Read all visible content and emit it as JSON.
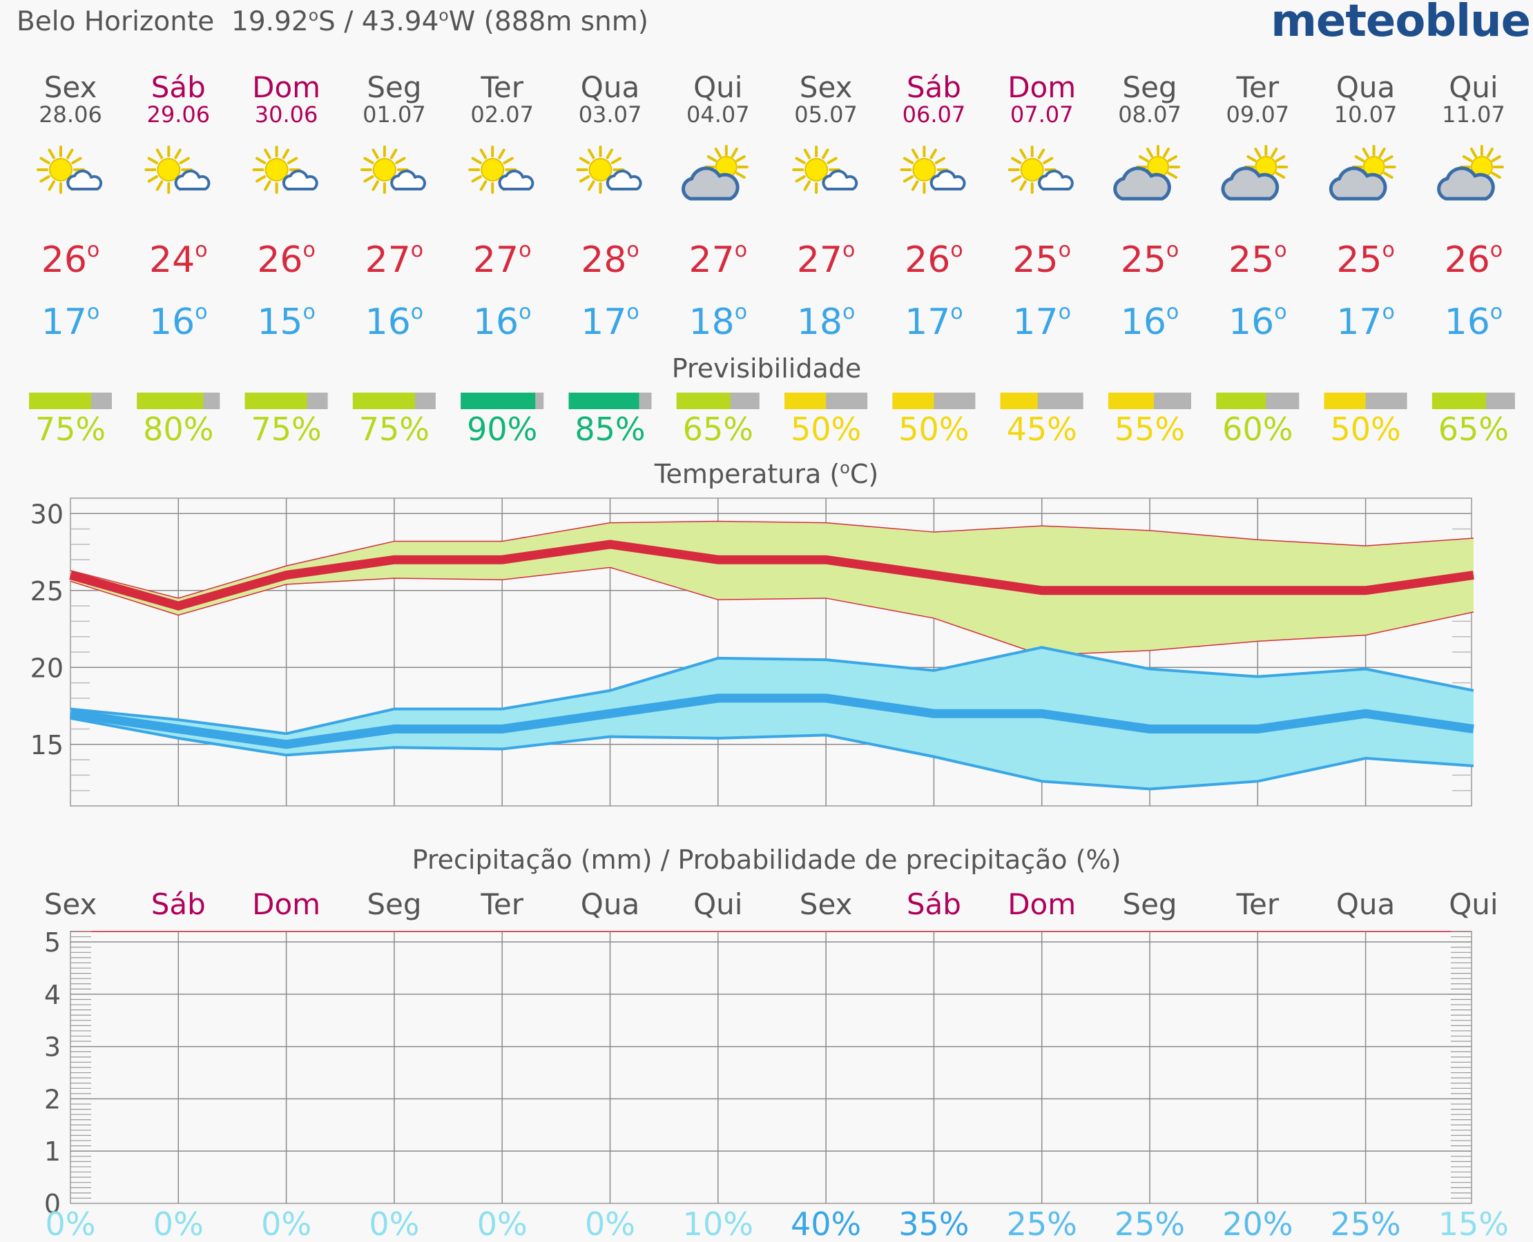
{
  "header": {
    "location": "Belo Horizonte",
    "lat": "19.92",
    "lat_dir": "S",
    "lon": "43.94",
    "lon_dir": "W",
    "elevation": "(888m snm)",
    "sep": "/",
    "brand": "meteoblue"
  },
  "colors": {
    "weekday": "#555555",
    "weekend": "#b0005a",
    "tmax": "#d62b3f",
    "tmin": "#3aa6e6",
    "max_band": "#d9ec9a",
    "min_band": "#9ee6f0",
    "pred_high": "#12b577",
    "pred_mid": "#b7d81e",
    "pred_low": "#f3d70f",
    "pred_rest": "#b4b4b4"
  },
  "days": [
    {
      "name": "Sex",
      "date": "28.06",
      "weekend": false,
      "icon": "sun-cloud-icon",
      "tmax": 26,
      "tmin": 17,
      "pred": 75,
      "precip_prob": "0%"
    },
    {
      "name": "Sáb",
      "date": "29.06",
      "weekend": true,
      "icon": "sun-cloud-icon",
      "tmax": 24,
      "tmin": 16,
      "pred": 80,
      "precip_prob": "0%"
    },
    {
      "name": "Dom",
      "date": "30.06",
      "weekend": true,
      "icon": "sun-cloud-icon",
      "tmax": 26,
      "tmin": 15,
      "pred": 75,
      "precip_prob": "0%"
    },
    {
      "name": "Seg",
      "date": "01.07",
      "weekend": false,
      "icon": "sun-cloud-icon",
      "tmax": 27,
      "tmin": 16,
      "pred": 75,
      "precip_prob": "0%"
    },
    {
      "name": "Ter",
      "date": "02.07",
      "weekend": false,
      "icon": "sun-cloud-icon",
      "tmax": 27,
      "tmin": 16,
      "pred": 90,
      "precip_prob": "0%"
    },
    {
      "name": "Qua",
      "date": "03.07",
      "weekend": false,
      "icon": "sun-cloud-icon",
      "tmax": 28,
      "tmin": 17,
      "pred": 85,
      "precip_prob": "0%"
    },
    {
      "name": "Qui",
      "date": "04.07",
      "weekend": false,
      "icon": "cloud-sun-icon",
      "tmax": 27,
      "tmin": 18,
      "pred": 65,
      "precip_prob": "10%"
    },
    {
      "name": "Sex",
      "date": "05.07",
      "weekend": false,
      "icon": "sun-cloud-icon",
      "tmax": 27,
      "tmin": 18,
      "pred": 50,
      "precip_prob": "40%"
    },
    {
      "name": "Sáb",
      "date": "06.07",
      "weekend": true,
      "icon": "sun-cloud-icon",
      "tmax": 26,
      "tmin": 17,
      "pred": 50,
      "precip_prob": "35%"
    },
    {
      "name": "Dom",
      "date": "07.07",
      "weekend": true,
      "icon": "sun-cloud-icon",
      "tmax": 25,
      "tmin": 17,
      "pred": 45,
      "precip_prob": "25%"
    },
    {
      "name": "Seg",
      "date": "08.07",
      "weekend": false,
      "icon": "cloud-sun-icon",
      "tmax": 25,
      "tmin": 16,
      "pred": 55,
      "precip_prob": "25%"
    },
    {
      "name": "Ter",
      "date": "09.07",
      "weekend": false,
      "icon": "cloud-sun-icon",
      "tmax": 25,
      "tmin": 16,
      "pred": 60,
      "precip_prob": "20%"
    },
    {
      "name": "Qua",
      "date": "10.07",
      "weekend": false,
      "icon": "cloud-sun-icon",
      "tmax": 25,
      "tmin": 17,
      "pred": 50,
      "precip_prob": "25%"
    },
    {
      "name": "Qui",
      "date": "11.07",
      "weekend": false,
      "icon": "cloud-sun-icon",
      "tmax": 26,
      "tmin": 16,
      "pred": 65,
      "precip_prob": "15%"
    }
  ],
  "predictability_title": "Previsibilidade",
  "chart_data": [
    {
      "type": "area",
      "title": "Temperatura (°C)",
      "unit": "°C",
      "ylim": [
        11,
        31
      ],
      "yticks": [
        15,
        20,
        25,
        30
      ],
      "x": [
        "Sex",
        "Sáb",
        "Dom",
        "Seg",
        "Ter",
        "Qua",
        "Qui",
        "Sex",
        "Sáb",
        "Dom",
        "Seg",
        "Ter",
        "Qua",
        "Qui"
      ],
      "grid": true,
      "series": [
        {
          "role": "max_upper",
          "values": [
            26.3,
            24.5,
            26.6,
            28.2,
            28.2,
            29.4,
            29.5,
            29.4,
            28.8,
            29.2,
            28.9,
            28.3,
            27.9,
            28.4
          ]
        },
        {
          "role": "max_lower",
          "values": [
            25.6,
            23.4,
            25.4,
            25.8,
            25.7,
            26.5,
            24.4,
            24.5,
            23.2,
            20.8,
            21.1,
            21.7,
            22.1,
            23.6
          ]
        },
        {
          "role": "max",
          "values": [
            26,
            24,
            26,
            27,
            27,
            28,
            27,
            27,
            26,
            25,
            25,
            25,
            25,
            26
          ]
        },
        {
          "role": "min_upper",
          "values": [
            17.3,
            16.6,
            15.7,
            17.3,
            17.3,
            18.5,
            20.6,
            20.5,
            19.8,
            21.3,
            19.9,
            19.4,
            19.9,
            18.5
          ]
        },
        {
          "role": "min_lower",
          "values": [
            16.7,
            15.4,
            14.3,
            14.8,
            14.7,
            15.5,
            15.4,
            15.6,
            14.2,
            12.6,
            12.1,
            12.6,
            14.1,
            13.6
          ]
        },
        {
          "role": "min",
          "values": [
            17,
            16,
            15,
            16,
            16,
            17,
            18,
            18,
            17,
            17,
            16,
            16,
            17,
            16
          ]
        }
      ]
    },
    {
      "type": "bar",
      "title": "Precipitação (mm) / Probabilidade de precipitação (%)",
      "unit": "mm",
      "ylim": [
        0,
        5.2
      ],
      "yticks": [
        0,
        1,
        2,
        3,
        4,
        5
      ],
      "categories": [
        "Sex",
        "Sáb",
        "Dom",
        "Seg",
        "Ter",
        "Qua",
        "Qui",
        "Sex",
        "Sáb",
        "Dom",
        "Seg",
        "Ter",
        "Qua",
        "Qui"
      ],
      "values": [
        0,
        0,
        0,
        0,
        0,
        0,
        0,
        0,
        0,
        0,
        0,
        0,
        0,
        0
      ],
      "probability": [
        "0%",
        "0%",
        "0%",
        "0%",
        "0%",
        "0%",
        "10%",
        "40%",
        "35%",
        "25%",
        "25%",
        "20%",
        "25%",
        "15%"
      ],
      "grid": true
    }
  ]
}
